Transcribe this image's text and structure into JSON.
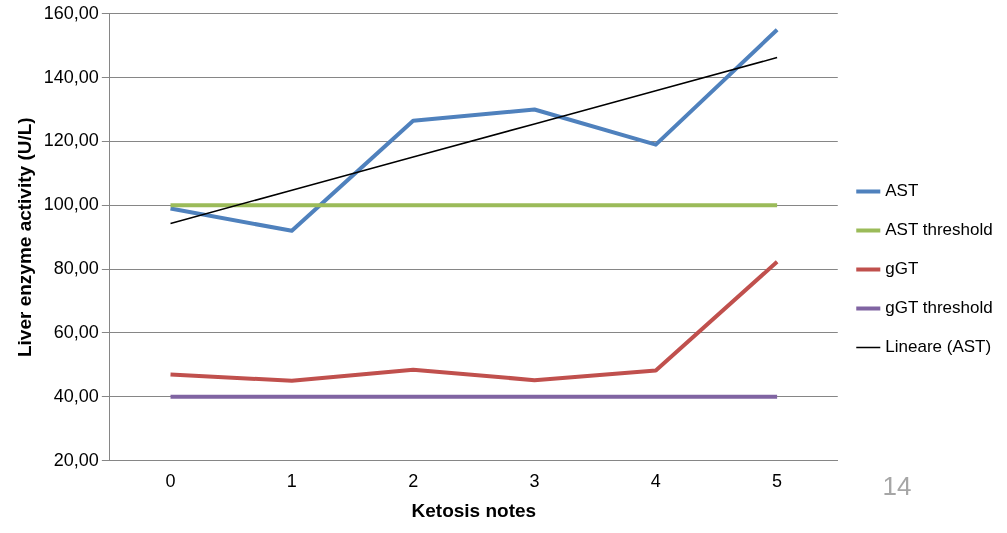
{
  "chart_data": {
    "type": "line",
    "xlabel": "Ketosis notes",
    "ylabel": "Liver enzyme activity (U/L)",
    "categories": [
      "0",
      "1",
      "2",
      "3",
      "4",
      "5"
    ],
    "series": [
      {
        "name": "AST",
        "color": "#4f81bd",
        "values": [
          99,
          92,
          126.5,
          130,
          119,
          155
        ]
      },
      {
        "name": "AST threshold",
        "color": "#9bbb59",
        "values": [
          100,
          100,
          100,
          100,
          100,
          100
        ]
      },
      {
        "name": "gGT",
        "color": "#c0504d",
        "values": [
          47,
          45,
          48.5,
          45.2,
          48.2,
          82.3
        ]
      },
      {
        "name": "gGT threshold",
        "color": "#8064a2",
        "values": [
          40,
          40,
          40,
          40,
          40,
          40
        ]
      },
      {
        "name": "Lineare (AST)",
        "color": "#000000",
        "values": [
          94.3,
          104.7,
          115.1,
          125.5,
          135.9,
          146.3
        ]
      }
    ],
    "ylim": [
      20,
      160
    ],
    "yticks": [
      {
        "value": 20,
        "label": "20,00"
      },
      {
        "value": 40,
        "label": "40,00"
      },
      {
        "value": 60,
        "label": "60,00"
      },
      {
        "value": 80,
        "label": "80,00"
      },
      {
        "value": 100,
        "label": "100,00"
      },
      {
        "value": 120,
        "label": "120,00"
      },
      {
        "value": 140,
        "label": "140,00"
      },
      {
        "value": 160,
        "label": "160,00"
      }
    ],
    "grid": "y",
    "legend": "right",
    "marker": "none",
    "line_style": "solid",
    "annotations": [
      "14"
    ]
  }
}
